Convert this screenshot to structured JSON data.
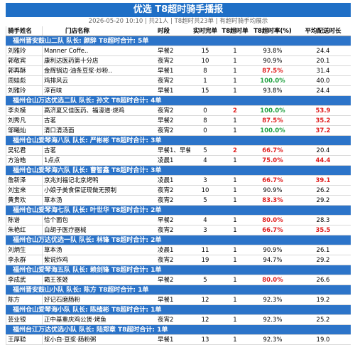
{
  "header": {
    "title": "优选 T8超时骑手播报",
    "subtitle": "2026-05-20 10:10 | 共21人 | T8超时共23单 | 有超时骑手均展示"
  },
  "table": {
    "columns": [
      "骑手姓名",
      "门店名称",
      "时段",
      "实时完单",
      "T8超时单",
      "T8超时率(%)",
      "平均配送时长"
    ],
    "groups": [
      {
        "label": "福州晋安鼓山二队    队长: 颜辞    T8超时合计: 5单",
        "rows": [
          {
            "cells": [
              "刘雅玲",
              "Manner Coffe..",
              "早餐2",
              "15",
              "1",
              "93.8%",
              "24.4"
            ],
            "colors": [
              "#000",
              "#000",
              "#000",
              "#000",
              "#000",
              "#000",
              "#000"
            ]
          },
          {
            "cells": [
              "郭敬宾",
              "康利达医药第十分店",
              "夜宵2",
              "10",
              "1",
              "90.9%",
              "20.1"
            ],
            "colors": [
              "#000",
              "#000",
              "#000",
              "#000",
              "#000",
              "#000",
              "#000"
            ]
          },
          {
            "cells": [
              "郭再酥",
              "金辉锅边·油条豆浆·炒粉..",
              "早餐1",
              "8",
              "1",
              "87.5%",
              "31.4"
            ],
            "colors": [
              "#000",
              "#000",
              "#000",
              "#000",
              "#000",
              "#e02020",
              "#000"
            ]
          },
          {
            "cells": [
              "周娃彪",
              "鸡排风云",
              "夜宵2",
              "1",
              "1",
              "100.0%",
              "40.0"
            ],
            "colors": [
              "#000",
              "#000",
              "#000",
              "#000",
              "#000",
              "#1fa040",
              "#000"
            ]
          },
          {
            "cells": [
              "刘雅玲",
              "淳百味",
              "早餐1",
              "15",
              "1",
              "93.8%",
              "24.4"
            ],
            "colors": [
              "#000",
              "#000",
              "#000",
              "#000",
              "#000",
              "#000",
              "#000"
            ]
          }
        ]
      },
      {
        "label": "福州仓山万达优选二队    队长: 孙文    T8超时合计: 4单",
        "rows": [
          {
            "cells": [
              "李炎模",
              "高济夏又佳医药、福濠道·烧鸡",
              "夜宵2",
              "0",
              "2",
              "100.0%",
              "53.9"
            ],
            "colors": [
              "#000",
              "#000",
              "#000",
              "#000",
              "#e02020",
              "#1fa040",
              "#e02020"
            ]
          },
          {
            "cells": [
              "刘秀凡",
              "古茗",
              "早餐2",
              "8",
              "1",
              "87.5%",
              "35.2"
            ],
            "colors": [
              "#000",
              "#000",
              "#000",
              "#000",
              "#000",
              "#e02020",
              "#e02020"
            ]
          },
          {
            "cells": [
              "邹曦灿",
              "清口清汤面",
              "夜宵2",
              "0",
              "1",
              "100.0%",
              "37.2"
            ],
            "colors": [
              "#000",
              "#000",
              "#000",
              "#000",
              "#000",
              "#1fa040",
              "#e02020"
            ]
          }
        ]
      },
      {
        "label": "福州仓山爱琴海八队    队长: 严彬彬    T8超时合计: 3单",
        "rows": [
          {
            "cells": [
              "吴钇君",
              "古茗",
              "早餐1、早餐2",
              "5",
              "2",
              "66.7%",
              "20.4"
            ],
            "colors": [
              "#000",
              "#000",
              "#000",
              "#000",
              "#e02020",
              "#e02020",
              "#000"
            ]
          },
          {
            "cells": [
              "方治皓",
              "1点点",
              "凌晨1",
              "4",
              "1",
              "75.0%",
              "44.4"
            ],
            "colors": [
              "#000",
              "#000",
              "#000",
              "#000",
              "#000",
              "#e02020",
              "#e02020"
            ]
          }
        ]
      },
      {
        "label": "福州仓山爱琴海六队    队长: 曹智鑫    T8超时合计: 3单",
        "rows": [
          {
            "cells": [
              "詹新泽",
              "京兆刘福记北京烤鸭",
              "凌晨1",
              "3",
              "1",
              "66.7%",
              "39.1"
            ],
            "colors": [
              "#000",
              "#000",
              "#000",
              "#000",
              "#000",
              "#e02020",
              "#e02020"
            ]
          },
          {
            "cells": [
              "刘宝来",
              "小娘子美食保证现做无预制",
              "夜宵2",
              "10",
              "1",
              "90.9%",
              "26.2"
            ],
            "colors": [
              "#000",
              "#000",
              "#000",
              "#000",
              "#000",
              "#000",
              "#000"
            ]
          },
          {
            "cells": [
              "黄贵欢",
              "草本汤",
              "夜宵2",
              "5",
              "1",
              "83.3%",
              "29.2"
            ],
            "colors": [
              "#000",
              "#000",
              "#000",
              "#000",
              "#000",
              "#e02020",
              "#000"
            ]
          }
        ]
      },
      {
        "label": "福州仓山爱琴海七队    队长: 叶世华    T8超时合计: 2单",
        "rows": [
          {
            "cells": [
              "陈谱",
              "恰个面包",
              "早餐2",
              "4",
              "1",
              "80.0%",
              "28.3"
            ],
            "colors": [
              "#000",
              "#000",
              "#000",
              "#000",
              "#000",
              "#e02020",
              "#000"
            ]
          },
          {
            "cells": [
              "朱艳红",
              "白胡子医疗器械",
              "夜宵2",
              "3",
              "1",
              "66.7%",
              "35.5"
            ],
            "colors": [
              "#000",
              "#000",
              "#000",
              "#000",
              "#000",
              "#e02020",
              "#e02020"
            ]
          }
        ]
      },
      {
        "label": "福州仓山万达优选一队    队长: 林锋    T8超时合计: 2单",
        "rows": [
          {
            "cells": [
              "刘炳生",
              "草本汤",
              "凌晨1",
              "11",
              "1",
              "90.9%",
              "26.1"
            ],
            "colors": [
              "#000",
              "#000",
              "#000",
              "#000",
              "#000",
              "#000",
              "#000"
            ]
          },
          {
            "cells": [
              "李永群",
              "紫说炸鸡",
              "夜宵2",
              "19",
              "1",
              "94.7%",
              "29.2"
            ],
            "colors": [
              "#000",
              "#000",
              "#000",
              "#000",
              "#000",
              "#000",
              "#000"
            ]
          }
        ]
      },
      {
        "label": "福州仓山爱琴海五队    队长: 赖剑锋    T8超时合计: 1单",
        "rows": [
          {
            "cells": [
              "李成武",
              "霸王茶姬",
              "早餐2",
              "5",
              "1",
              "80.0%",
              "26.6"
            ],
            "colors": [
              "#000",
              "#000",
              "#000",
              "#000",
              "#000",
              "#e02020",
              "#000"
            ]
          }
        ]
      },
      {
        "label": "福州晋安鼓山小队    队长: 陈方    T8超时合计: 1单",
        "rows": [
          {
            "cells": [
              "陈方",
              "好记石磨肠粉",
              "早餐1",
              "12",
              "1",
              "92.3%",
              "19.2"
            ],
            "colors": [
              "#000",
              "#000",
              "#000",
              "#000",
              "#000",
              "#000",
              "#000"
            ]
          }
        ]
      },
      {
        "label": "福州仓山爱琴海小队    队长: 陈绪彬    T8超时合计: 1单",
        "rows": [
          {
            "cells": [
              "芸业银",
              "正中基重庆鸡公煲·烤鱼",
              "夜宵2",
              "12",
              "1",
              "92.3%",
              "25.2"
            ],
            "colors": [
              "#000",
              "#000",
              "#000",
              "#000",
              "#000",
              "#000",
              "#000"
            ]
          }
        ]
      },
      {
        "label": "福州台江万达优选小队    队长: 陆郑章    T8超时合计: 1单",
        "rows": [
          {
            "cells": [
              "王厚聪",
              "浆小白·豆浆·肠粉粥",
              "早餐1",
              "13",
              "1",
              "92.3%",
              "19.0"
            ],
            "colors": [
              "#000",
              "#000",
              "#000",
              "#000",
              "#000",
              "#000",
              "#000"
            ]
          }
        ]
      }
    ]
  }
}
